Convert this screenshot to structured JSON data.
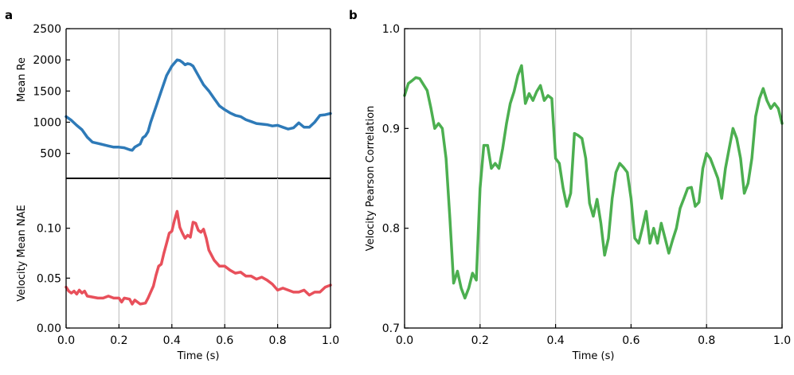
{
  "panel_labels": {
    "a": "a",
    "b": "b"
  },
  "chart_data": [
    {
      "type": "line",
      "panel": "a-top",
      "title": "",
      "xlabel": "",
      "ylabel": "Mean Re",
      "xlim": [
        0.0,
        1.0
      ],
      "ylim": [
        100,
        2500
      ],
      "yticks": [
        500,
        1000,
        1500,
        2000,
        2500
      ],
      "ytick_labels": [
        "500",
        "1000",
        "1500",
        "2000",
        "2500"
      ],
      "xgrid": [
        0.2,
        0.4,
        0.6,
        0.8
      ],
      "grid": "vertical",
      "series": [
        {
          "color": "#2e7ab8",
          "x": [
            0.0,
            0.02,
            0.04,
            0.06,
            0.08,
            0.1,
            0.12,
            0.14,
            0.16,
            0.18,
            0.2,
            0.22,
            0.24,
            0.25,
            0.26,
            0.28,
            0.29,
            0.3,
            0.31,
            0.32,
            0.34,
            0.36,
            0.38,
            0.4,
            0.42,
            0.43,
            0.44,
            0.45,
            0.46,
            0.47,
            0.48,
            0.5,
            0.52,
            0.54,
            0.56,
            0.58,
            0.6,
            0.62,
            0.64,
            0.66,
            0.68,
            0.7,
            0.72,
            0.74,
            0.76,
            0.78,
            0.8,
            0.82,
            0.84,
            0.86,
            0.88,
            0.9,
            0.92,
            0.94,
            0.96,
            0.98,
            1.0
          ],
          "y": [
            1090,
            1030,
            950,
            880,
            760,
            680,
            660,
            640,
            620,
            600,
            600,
            590,
            560,
            550,
            600,
            650,
            750,
            780,
            850,
            1000,
            1250,
            1500,
            1750,
            1900,
            2000,
            1990,
            1960,
            1920,
            1940,
            1930,
            1900,
            1750,
            1600,
            1500,
            1380,
            1260,
            1200,
            1150,
            1110,
            1090,
            1040,
            1010,
            980,
            970,
            960,
            940,
            950,
            920,
            890,
            910,
            990,
            920,
            920,
            1000,
            1110,
            1120,
            1140
          ]
        }
      ]
    },
    {
      "type": "line",
      "panel": "a-bottom",
      "title": "",
      "xlabel": "Time (s)",
      "ylabel": "Velocity Mean NAE",
      "xlim": [
        0.0,
        1.0
      ],
      "ylim": [
        0.0,
        0.15
      ],
      "yticks": [
        0.0,
        0.05,
        0.1
      ],
      "ytick_labels": [
        "0.00",
        "0.05",
        "0.10"
      ],
      "xticks": [
        0.0,
        0.2,
        0.4,
        0.6,
        0.8,
        1.0
      ],
      "xtick_labels": [
        "0.0",
        "0.2",
        "0.4",
        "0.6",
        "0.8",
        "1.0"
      ],
      "xgrid": [
        0.2,
        0.4,
        0.6,
        0.8
      ],
      "grid": "vertical",
      "series": [
        {
          "color": "#e8505b",
          "x": [
            0.0,
            0.01,
            0.02,
            0.03,
            0.04,
            0.05,
            0.06,
            0.07,
            0.08,
            0.1,
            0.12,
            0.14,
            0.16,
            0.18,
            0.2,
            0.21,
            0.22,
            0.24,
            0.25,
            0.26,
            0.28,
            0.3,
            0.31,
            0.32,
            0.33,
            0.34,
            0.35,
            0.36,
            0.37,
            0.38,
            0.39,
            0.4,
            0.41,
            0.42,
            0.43,
            0.44,
            0.45,
            0.46,
            0.47,
            0.48,
            0.49,
            0.5,
            0.51,
            0.52,
            0.53,
            0.54,
            0.56,
            0.58,
            0.6,
            0.62,
            0.64,
            0.66,
            0.68,
            0.7,
            0.72,
            0.74,
            0.76,
            0.78,
            0.8,
            0.82,
            0.84,
            0.86,
            0.88,
            0.9,
            0.92,
            0.94,
            0.96,
            0.98,
            1.0
          ],
          "y": [
            0.041,
            0.037,
            0.035,
            0.037,
            0.034,
            0.038,
            0.035,
            0.037,
            0.032,
            0.031,
            0.03,
            0.03,
            0.032,
            0.03,
            0.03,
            0.026,
            0.03,
            0.029,
            0.024,
            0.028,
            0.024,
            0.025,
            0.03,
            0.036,
            0.042,
            0.053,
            0.062,
            0.064,
            0.075,
            0.085,
            0.095,
            0.097,
            0.108,
            0.117,
            0.101,
            0.095,
            0.09,
            0.093,
            0.091,
            0.106,
            0.105,
            0.098,
            0.096,
            0.099,
            0.09,
            0.078,
            0.068,
            0.062,
            0.062,
            0.058,
            0.055,
            0.056,
            0.052,
            0.052,
            0.049,
            0.051,
            0.048,
            0.044,
            0.038,
            0.04,
            0.038,
            0.036,
            0.036,
            0.038,
            0.033,
            0.036,
            0.036,
            0.041,
            0.043
          ]
        }
      ]
    },
    {
      "type": "line",
      "panel": "b",
      "title": "",
      "xlabel": "Time (s)",
      "ylabel": "Velocity Pearson Correlation",
      "xlim": [
        0.0,
        1.0
      ],
      "ylim": [
        0.7,
        1.0
      ],
      "yticks": [
        0.7,
        0.8,
        0.9,
        1.0
      ],
      "ytick_labels": [
        "0.7",
        "0.8",
        "0.9",
        "1.0"
      ],
      "xticks": [
        0.0,
        0.2,
        0.4,
        0.6,
        0.8,
        1.0
      ],
      "xtick_labels": [
        "0.0",
        "0.2",
        "0.4",
        "0.6",
        "0.8",
        "1.0"
      ],
      "xgrid": [
        0.2,
        0.4,
        0.6,
        0.8
      ],
      "grid": "vertical",
      "series": [
        {
          "color": "#4caf50",
          "x": [
            0.0,
            0.01,
            0.02,
            0.03,
            0.04,
            0.05,
            0.06,
            0.07,
            0.08,
            0.09,
            0.1,
            0.11,
            0.12,
            0.13,
            0.14,
            0.15,
            0.16,
            0.17,
            0.18,
            0.19,
            0.2,
            0.21,
            0.22,
            0.23,
            0.24,
            0.25,
            0.26,
            0.27,
            0.28,
            0.29,
            0.3,
            0.31,
            0.32,
            0.33,
            0.34,
            0.35,
            0.36,
            0.37,
            0.38,
            0.39,
            0.4,
            0.41,
            0.42,
            0.43,
            0.44,
            0.45,
            0.46,
            0.47,
            0.48,
            0.49,
            0.5,
            0.51,
            0.52,
            0.53,
            0.54,
            0.55,
            0.56,
            0.57,
            0.58,
            0.59,
            0.6,
            0.61,
            0.62,
            0.63,
            0.64,
            0.65,
            0.66,
            0.67,
            0.68,
            0.69,
            0.7,
            0.71,
            0.72,
            0.73,
            0.74,
            0.75,
            0.76,
            0.77,
            0.78,
            0.79,
            0.8,
            0.81,
            0.82,
            0.83,
            0.84,
            0.85,
            0.86,
            0.87,
            0.88,
            0.89,
            0.9,
            0.91,
            0.92,
            0.93,
            0.94,
            0.95,
            0.96,
            0.97,
            0.98,
            0.99,
            1.0
          ],
          "y": [
            0.933,
            0.945,
            0.948,
            0.951,
            0.95,
            0.944,
            0.938,
            0.92,
            0.9,
            0.905,
            0.9,
            0.87,
            0.81,
            0.745,
            0.757,
            0.74,
            0.73,
            0.74,
            0.755,
            0.748,
            0.84,
            0.883,
            0.883,
            0.86,
            0.865,
            0.86,
            0.88,
            0.905,
            0.925,
            0.937,
            0.953,
            0.963,
            0.925,
            0.935,
            0.928,
            0.937,
            0.943,
            0.928,
            0.933,
            0.93,
            0.87,
            0.865,
            0.84,
            0.822,
            0.835,
            0.895,
            0.893,
            0.89,
            0.87,
            0.825,
            0.812,
            0.829,
            0.805,
            0.773,
            0.79,
            0.83,
            0.856,
            0.865,
            0.861,
            0.856,
            0.83,
            0.79,
            0.785,
            0.8,
            0.817,
            0.785,
            0.8,
            0.785,
            0.805,
            0.79,
            0.775,
            0.788,
            0.8,
            0.82,
            0.83,
            0.84,
            0.841,
            0.822,
            0.826,
            0.86,
            0.875,
            0.87,
            0.86,
            0.85,
            0.83,
            0.86,
            0.88,
            0.9,
            0.89,
            0.87,
            0.835,
            0.845,
            0.87,
            0.912,
            0.93,
            0.94,
            0.928,
            0.92,
            0.925,
            0.92,
            0.905
          ]
        }
      ]
    }
  ]
}
